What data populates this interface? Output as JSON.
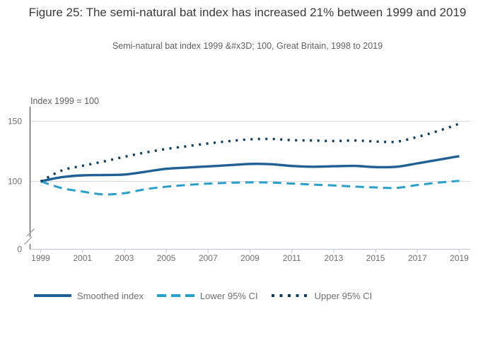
{
  "figure": {
    "title": "Figure 25: The semi-natural bat index has increased 21% between 1999 and 2019",
    "subtitle": "Semi-natural bat index 1999 &#x3D; 100, Great Britain, 1998 to 2019"
  },
  "chart_data": {
    "type": "line",
    "title": "Figure 25: The semi-natural bat index has increased 21% between 1999 and 2019",
    "subtitle": "Semi-natural bat index 1999 &#x3D; 100, Great Britain, 1998 to 2019",
    "y_axis_label": "Index 1999 = 100",
    "x": [
      1999,
      2000,
      2001,
      2002,
      2003,
      2004,
      2005,
      2006,
      2007,
      2008,
      2009,
      2010,
      2011,
      2012,
      2013,
      2014,
      2015,
      2016,
      2017,
      2018,
      2019
    ],
    "series": [
      {
        "name": "Smoothed index",
        "style": "solid",
        "color": "#206095",
        "values": [
          100,
          103.5,
          105,
          105.3,
          105.7,
          108,
          110.5,
          111.5,
          112.5,
          113.5,
          114.5,
          114.3,
          112.8,
          112.2,
          112.6,
          112.9,
          111.9,
          112.2,
          115,
          118,
          121
        ]
      },
      {
        "name": "Lower 95% CI",
        "style": "dashed",
        "color": "#29a0cc",
        "values": [
          100,
          94.5,
          91.5,
          89.2,
          90.2,
          93.5,
          95.6,
          97,
          98.2,
          98.8,
          99.2,
          99,
          98.2,
          97.3,
          96.6,
          95.7,
          95,
          94.6,
          97,
          99,
          100.5
        ]
      },
      {
        "name": "Upper 95% CI",
        "style": "dotted",
        "color": "#0e3e5c",
        "values": [
          100,
          109,
          113,
          116.5,
          120.5,
          124,
          127,
          129.3,
          131.5,
          133.5,
          135,
          135.3,
          134.3,
          134,
          133.6,
          134,
          133.2,
          133,
          137,
          142,
          148
        ]
      }
    ],
    "x_ticks": [
      1999,
      2001,
      2003,
      2005,
      2007,
      2009,
      2011,
      2013,
      2015,
      2017,
      2019
    ],
    "y_ticks": [
      150,
      100,
      0
    ],
    "xlim": [
      1999,
      2019
    ],
    "ylim": [
      0,
      158
    ],
    "axis_break": true,
    "grid": "horizontal-at-100-and-150",
    "legend_position": "bottom"
  },
  "style_colors": {
    "gridline": "#d9d9d9",
    "x_axis": "#c7ccd4",
    "y_axis": "#4d4d4d",
    "tick_text": "#6f6f71",
    "axis_break_mark": "#a0a0a0"
  }
}
